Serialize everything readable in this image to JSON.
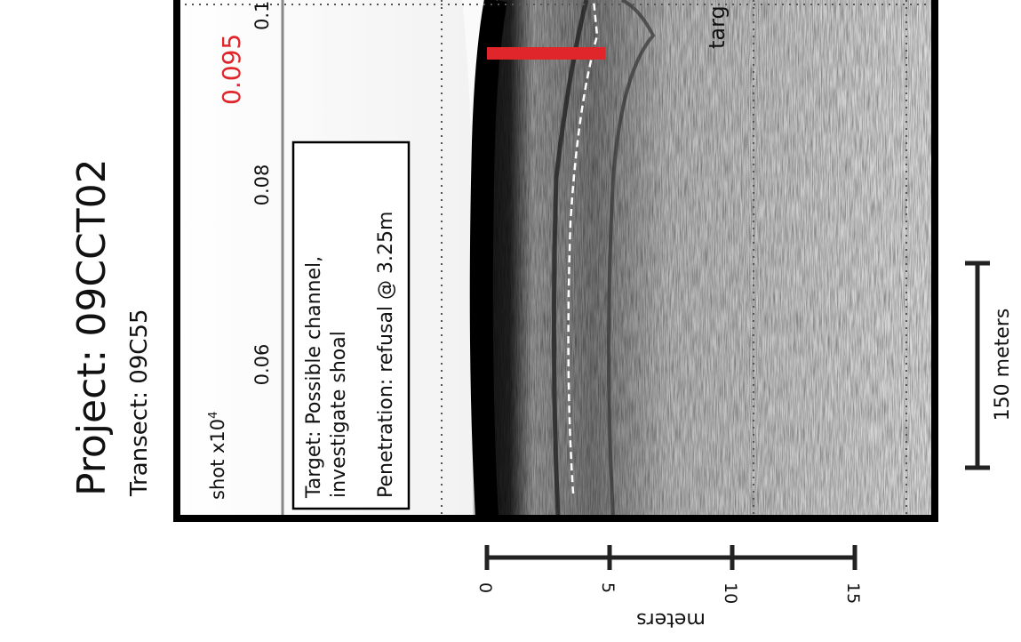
{
  "header": {
    "title": "Project: 09CCT02",
    "subtitle": "Transect: 09C55"
  },
  "profile": {
    "axis_label": "shot x10",
    "axis_label_exponent": "4",
    "ticks": [
      "0.06",
      "0.08",
      "0.1"
    ],
    "marker_label": "0.095",
    "target_label": "targ"
  },
  "note": {
    "lines": [
      "Target: Possible channel,",
      "investigate shoal",
      "Penetration: refusal @ 3.25m"
    ]
  },
  "horizontal_scale": {
    "label": "150 meters"
  },
  "vertical_scale": {
    "label": "meters",
    "ticks": [
      0,
      5,
      10,
      15
    ]
  }
}
